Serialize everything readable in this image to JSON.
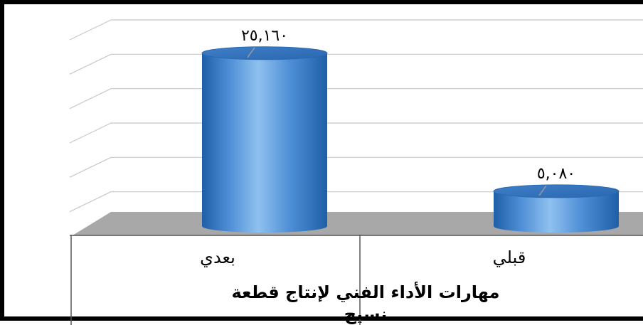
{
  "chart_data": {
    "type": "bar",
    "categories": [
      "بعدي",
      "قبلي"
    ],
    "values": [
      25.16,
      5.08
    ],
    "data_labels": [
      "٢٥,١٦٠",
      "٥,٠٨٠"
    ],
    "xlabel_lines": [
      "مهارات الأداء الفني لإنتاج قطعة",
      "نسيج"
    ],
    "ylabel": "",
    "ylim": [
      0,
      30
    ],
    "grid": true,
    "legend": "none",
    "colors": {
      "bar": "#4f8fd6",
      "bar_dark": "#1f5fa8",
      "bar_light": "#8fc1ef",
      "floor": "#a8a8a8",
      "grid": "#c8c8c8",
      "frame": "#000000"
    }
  }
}
